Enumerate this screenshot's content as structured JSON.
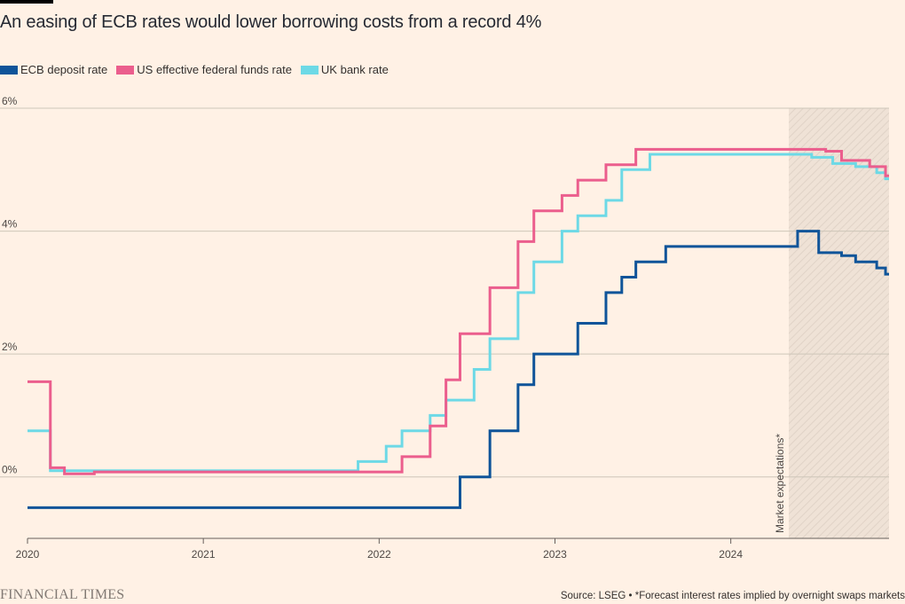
{
  "header": {
    "title": "An easing of ECB rates would lower borrowing costs from a record 4%"
  },
  "legend": {
    "items": [
      {
        "label": "ECB deposit rate",
        "color": "#0f5499"
      },
      {
        "label": "US effective federal funds rate",
        "color": "#eb5e8d"
      },
      {
        "label": "UK bank rate",
        "color": "#6dd9e6"
      }
    ]
  },
  "annotation": {
    "label": "Market expectations*"
  },
  "footer": {
    "brand": "FINANCIAL TIMES",
    "source": "Source: LSEG • *Forecast interest rates implied by overnight swaps markets"
  },
  "colors": {
    "background": "#fff1e5",
    "grid": "#cec6b9",
    "shading": "#e9ddd2"
  },
  "chart_data": {
    "type": "line",
    "step": true,
    "title": "An easing of ECB rates would lower borrowing costs from a record 4%",
    "xlabel": "",
    "ylabel": "",
    "xlim": [
      2020.0,
      2024.9
    ],
    "ylim": [
      -1.0,
      6.0
    ],
    "y_ticks": [
      0,
      2,
      4,
      6
    ],
    "y_tick_labels": [
      "0%",
      "2%",
      "4%",
      "6%"
    ],
    "x_ticks": [
      2020,
      2021,
      2022,
      2023,
      2024
    ],
    "x_tick_labels": [
      "2020",
      "2021",
      "2022",
      "2023",
      "2024"
    ],
    "grid": true,
    "legend_position": "top-left",
    "forecast_start": 2024.33,
    "series": [
      {
        "name": "ECB deposit rate",
        "color": "#0f5499",
        "x": [
          2020.0,
          2022.46,
          2022.63,
          2022.79,
          2022.88,
          2023.13,
          2023.29,
          2023.38,
          2023.46,
          2023.63,
          2024.38,
          2024.5,
          2024.63,
          2024.71,
          2024.83,
          2024.88
        ],
        "y": [
          -0.5,
          0.0,
          0.75,
          1.5,
          2.0,
          2.5,
          3.0,
          3.25,
          3.5,
          3.75,
          4.0,
          3.65,
          3.6,
          3.5,
          3.4,
          3.3
        ]
      },
      {
        "name": "US effective federal funds rate",
        "color": "#eb5e8d",
        "x": [
          2020.0,
          2020.13,
          2020.21,
          2020.38,
          2021.38,
          2021.63,
          2022.13,
          2022.29,
          2022.38,
          2022.46,
          2022.63,
          2022.79,
          2022.88,
          2023.04,
          2023.13,
          2023.29,
          2023.46,
          2024.38,
          2024.54,
          2024.63,
          2024.79,
          2024.88
        ],
        "y": [
          1.55,
          0.15,
          0.05,
          0.08,
          0.08,
          0.08,
          0.33,
          0.83,
          1.58,
          2.33,
          3.08,
          3.83,
          4.33,
          4.58,
          4.83,
          5.08,
          5.33,
          5.33,
          5.3,
          5.15,
          5.05,
          4.9
        ]
      },
      {
        "name": "UK bank rate",
        "color": "#6dd9e6",
        "x": [
          2020.0,
          2020.13,
          2021.88,
          2022.04,
          2022.13,
          2022.29,
          2022.38,
          2022.54,
          2022.63,
          2022.79,
          2022.88,
          2023.04,
          2023.13,
          2023.29,
          2023.38,
          2023.54,
          2024.38,
          2024.46,
          2024.58,
          2024.71,
          2024.83,
          2024.88
        ],
        "y": [
          0.75,
          0.1,
          0.25,
          0.5,
          0.75,
          1.0,
          1.25,
          1.75,
          2.25,
          3.0,
          3.5,
          4.0,
          4.25,
          4.5,
          5.0,
          5.25,
          5.25,
          5.2,
          5.1,
          5.05,
          4.95,
          4.85
        ]
      }
    ]
  }
}
